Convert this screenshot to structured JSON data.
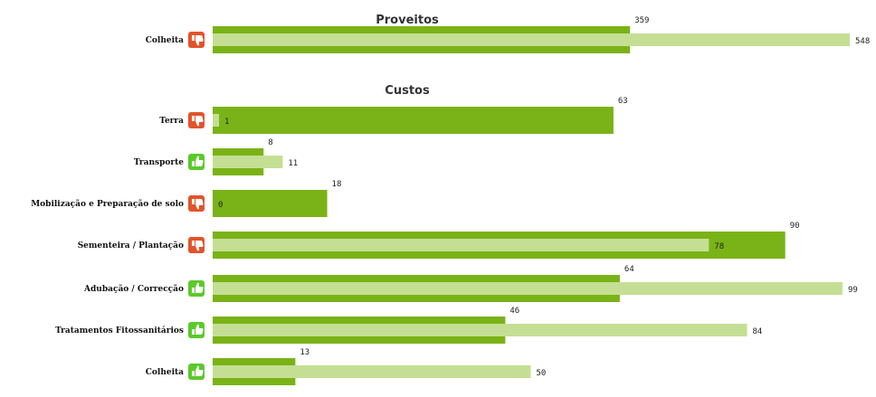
{
  "colors": {
    "bar_dark": "#7ab317",
    "bar_light": "#c4df93",
    "thumb_down": "#e3532b",
    "thumb_up": "#5cc92a"
  },
  "chart_data": {
    "type": "bar",
    "orientation": "horizontal",
    "legend": "none",
    "xlim": [
      0,
      100
    ],
    "sections": [
      {
        "title": "Proveitos",
        "categories": [
          "Colheita"
        ],
        "dark_values": [
          359
        ],
        "light_values": [
          548
        ],
        "icons": [
          "thumb-down-icon"
        ]
      },
      {
        "title": "Custos",
        "categories": [
          "Terra",
          "Transporte",
          "Mobilização e Preparação de solo",
          "Sementeira / Plantação",
          "Adubação / Correcção",
          "Tratamentos Fitossanitários",
          "Colheita"
        ],
        "dark_values": [
          63,
          8,
          18,
          90,
          64,
          46,
          13
        ],
        "light_values": [
          1,
          11,
          0,
          78,
          99,
          84,
          50
        ],
        "icons": [
          "thumb-down-icon",
          "thumb-up-icon",
          "thumb-down-icon",
          "thumb-down-icon",
          "thumb-up-icon",
          "thumb-up-icon",
          "thumb-up-icon"
        ]
      }
    ]
  }
}
